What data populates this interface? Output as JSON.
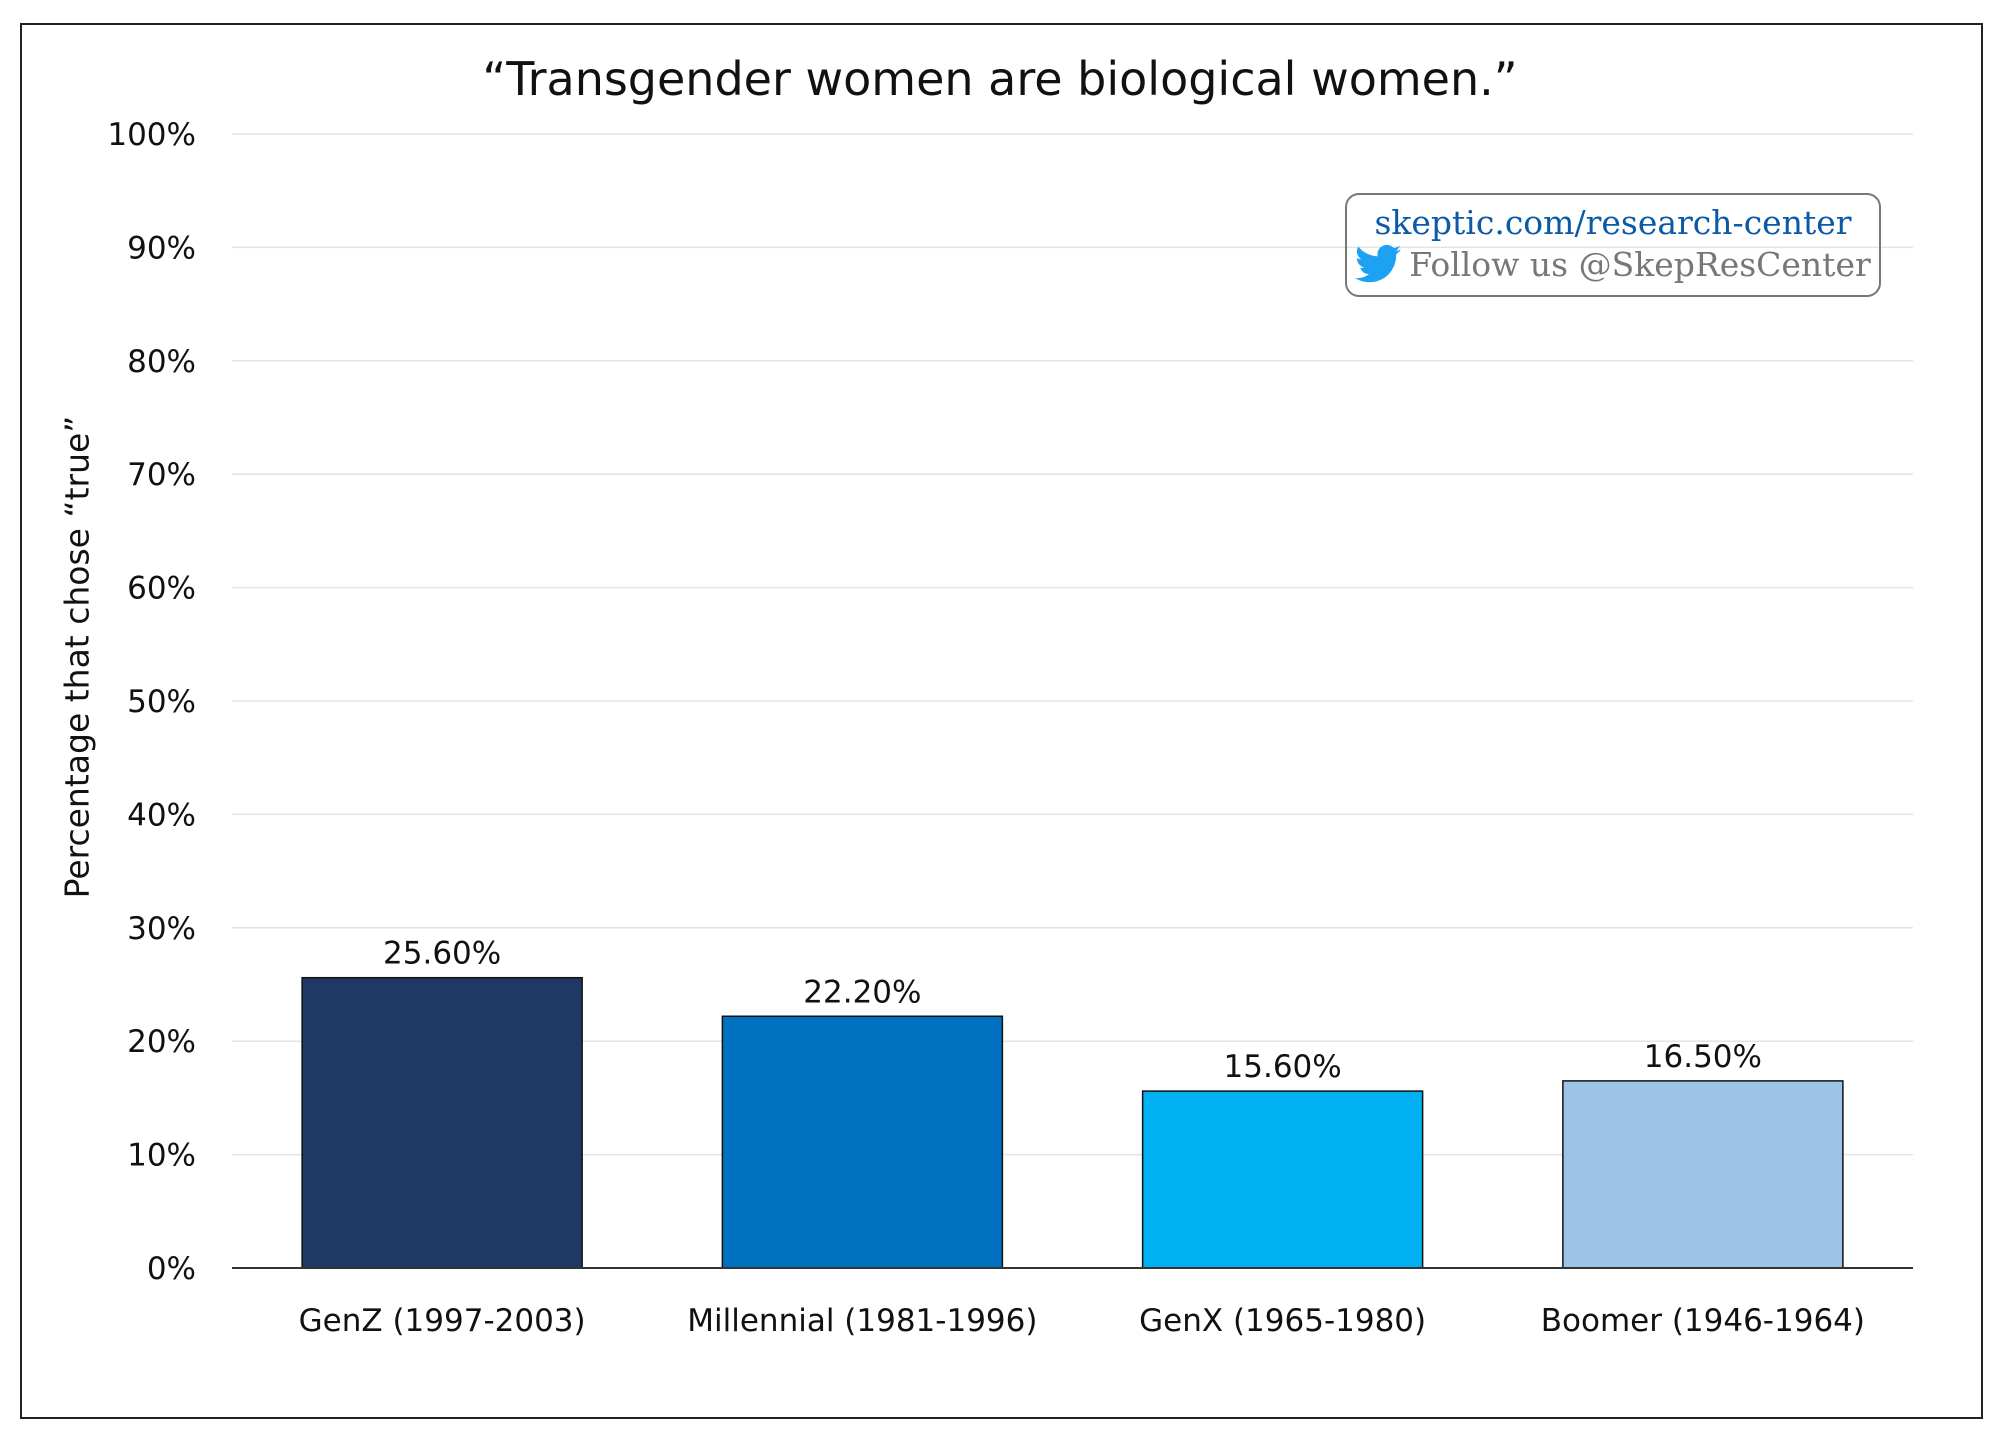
{
  "chart_data": {
    "type": "bar",
    "title": "“Transgender women are biological women.”",
    "ylabel": "Percentage that chose “true”",
    "xlabel": "",
    "categories": [
      "GenZ (1997-2003)",
      "Millennial (1981-1996)",
      "GenX (1965-1980)",
      "Boomer (1946-1964)"
    ],
    "values": [
      25.6,
      22.2,
      15.6,
      16.5
    ],
    "data_labels": [
      "25.60%",
      "22.20%",
      "15.60%",
      "16.50%"
    ],
    "colors": [
      "#203864",
      "#0070C0",
      "#00B0F0",
      "#9DC3E6"
    ],
    "ylim": [
      0,
      100
    ],
    "yticks": [
      0,
      10,
      20,
      30,
      40,
      50,
      60,
      70,
      80,
      90,
      100
    ],
    "ytick_labels": [
      "0%",
      "10%",
      "20%",
      "30%",
      "40%",
      "50%",
      "60%",
      "70%",
      "80%",
      "90%",
      "100%"
    ],
    "grid": true,
    "legend": "none"
  },
  "badge": {
    "url": "skeptic.com/research-center",
    "follow": "Follow us @SkepResCenter",
    "icon": "twitter-bird-icon"
  }
}
